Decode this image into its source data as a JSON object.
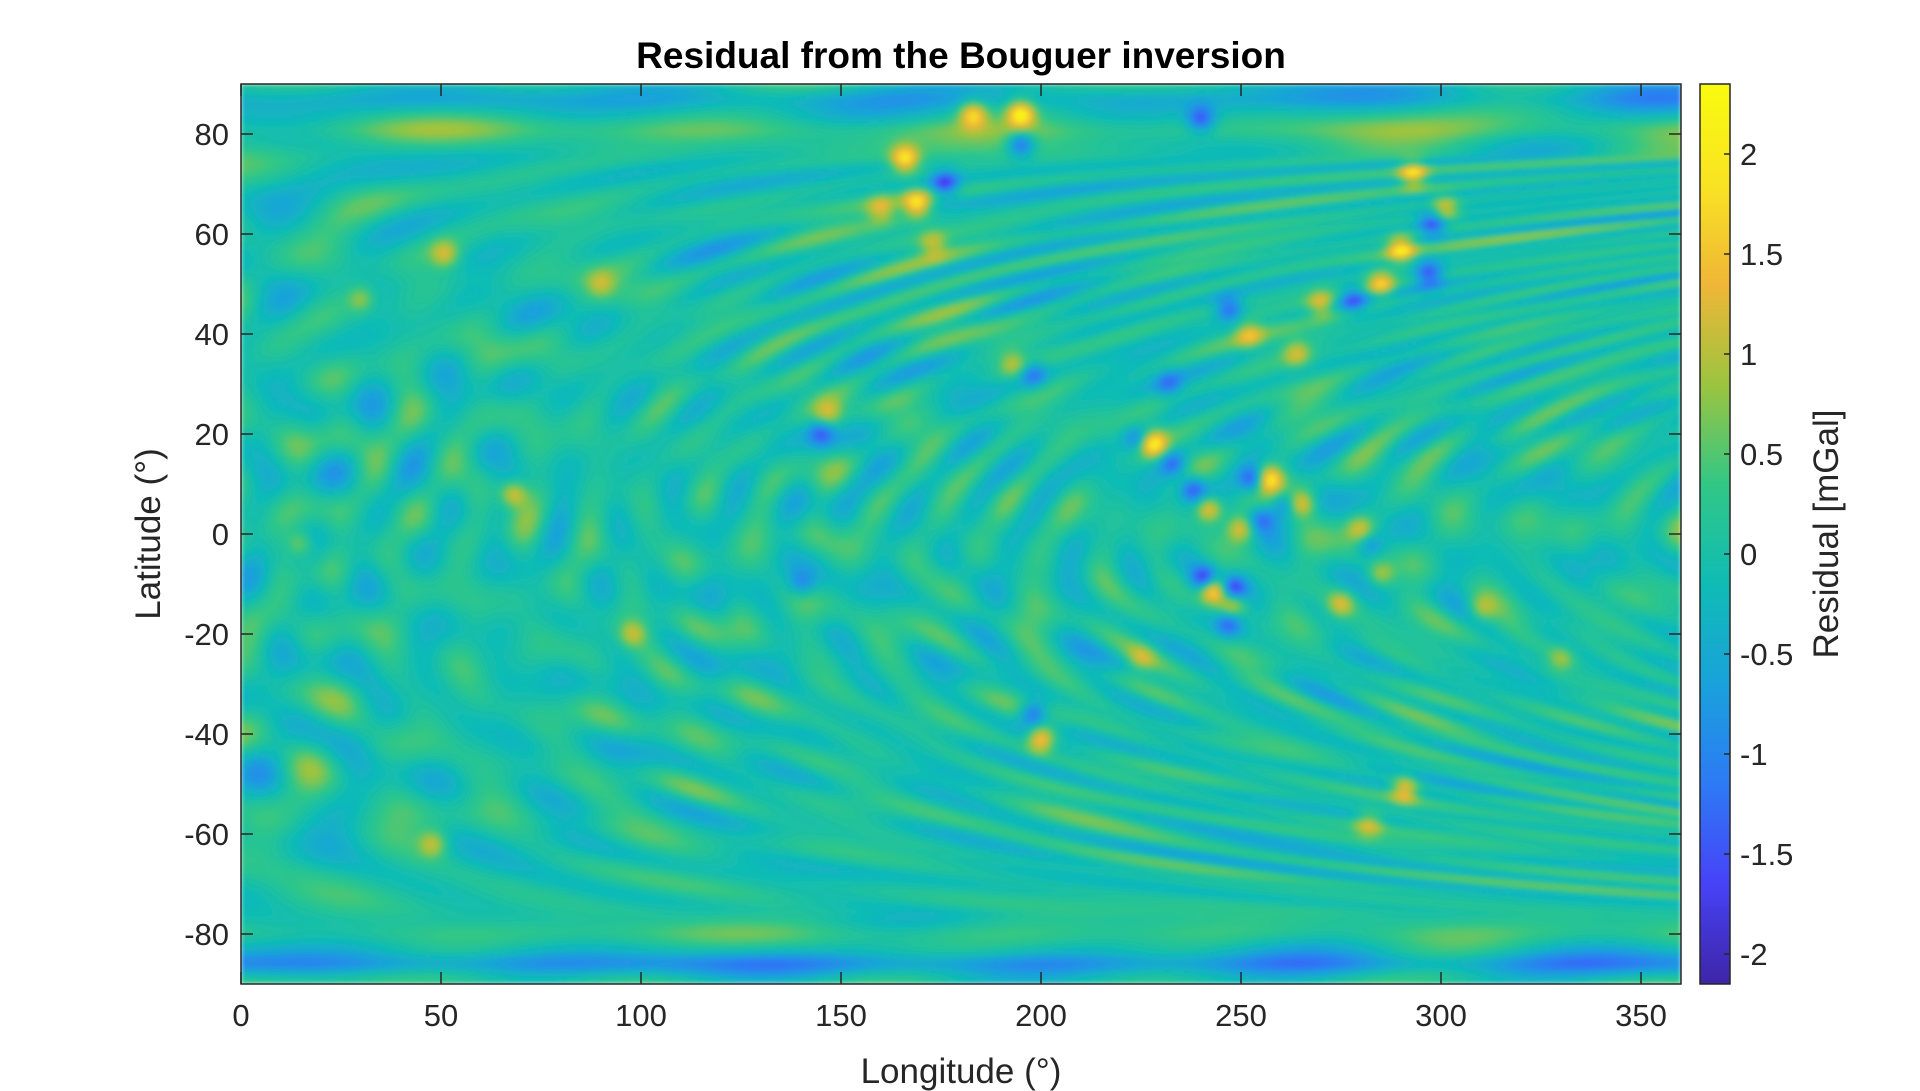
{
  "chart_data": {
    "type": "heatmap",
    "title": "Residual from the Bouguer inversion",
    "xlabel": "Longitude (°)",
    "ylabel": "Latitude (°)",
    "xlim": [
      0,
      360
    ],
    "ylim": [
      -90,
      90
    ],
    "x_ticks": [
      0,
      50,
      100,
      150,
      200,
      250,
      300,
      350
    ],
    "x_tick_labels": [
      "0",
      "50",
      "100",
      "150",
      "200",
      "250",
      "300",
      "350"
    ],
    "y_ticks": [
      80,
      60,
      40,
      20,
      0,
      -20,
      -40,
      -60,
      -80
    ],
    "y_tick_labels": [
      "80",
      "60",
      "40",
      "20",
      "0",
      "-20",
      "-40",
      "-60",
      "-80"
    ],
    "colorbar": {
      "label": "Residual [mGal]",
      "limits": [
        -2.15,
        2.35
      ],
      "ticks": [
        2,
        1.5,
        1,
        0.5,
        0,
        -0.5,
        -1,
        -1.5,
        -2
      ],
      "tick_labels": [
        "2",
        "1.5",
        "1",
        "0.5",
        "0",
        "-0.5",
        "-1",
        "-1.5",
        "-2"
      ],
      "colormap": "parula",
      "colormap_stops": [
        "#3e26a8",
        "#4743f8",
        "#2d7bf5",
        "#1aa2dc",
        "#0fbcb5",
        "#32c786",
        "#9cc43f",
        "#f0b637",
        "#f9e324",
        "#f9fb0e"
      ]
    },
    "grid": false,
    "legend": "none",
    "features": [
      {
        "lon": 228,
        "lat": 18,
        "value": 1.9
      },
      {
        "lon": 241,
        "lat": -9,
        "value": -2.1
      },
      {
        "lon": 243,
        "lat": -11,
        "value": 2.2
      },
      {
        "lon": 248,
        "lat": -11,
        "value": -1.8
      },
      {
        "lon": 257,
        "lat": 11,
        "value": 1.9
      },
      {
        "lon": 253,
        "lat": 11,
        "value": -1.6
      },
      {
        "lon": 265,
        "lat": 6,
        "value": 1.4
      },
      {
        "lon": 242,
        "lat": 5,
        "value": 1.6
      },
      {
        "lon": 238,
        "lat": 9,
        "value": -1.5
      },
      {
        "lon": 233,
        "lat": 14,
        "value": -1.2
      },
      {
        "lon": 224,
        "lat": 19,
        "value": -1.1
      },
      {
        "lon": 250,
        "lat": 1,
        "value": 1.2
      },
      {
        "lon": 255,
        "lat": 3,
        "value": -1.2
      },
      {
        "lon": 261,
        "lat": 6,
        "value": -1.0
      },
      {
        "lon": 248,
        "lat": -14,
        "value": 1.3
      },
      {
        "lon": 247,
        "lat": -18,
        "value": -1.2
      },
      {
        "lon": 275,
        "lat": -14,
        "value": 1.1
      },
      {
        "lon": 285,
        "lat": -8,
        "value": 1.0
      },
      {
        "lon": 282,
        "lat": -2,
        "value": -0.9
      },
      {
        "lon": 280,
        "lat": 1,
        "value": 1.1
      },
      {
        "lon": 195,
        "lat": 84,
        "value": 2.0
      },
      {
        "lon": 183,
        "lat": 84,
        "value": 1.6
      },
      {
        "lon": 240,
        "lat": 83,
        "value": -1.4
      },
      {
        "lon": 195,
        "lat": 78,
        "value": -1.5
      },
      {
        "lon": 166,
        "lat": 75,
        "value": 1.8
      },
      {
        "lon": 176,
        "lat": 70,
        "value": -1.6
      },
      {
        "lon": 169,
        "lat": 66,
        "value": 1.7
      },
      {
        "lon": 293,
        "lat": 72,
        "value": 1.6
      },
      {
        "lon": 301,
        "lat": 65,
        "value": 1.3
      },
      {
        "lon": 298,
        "lat": 62,
        "value": -1.4
      },
      {
        "lon": 290,
        "lat": 57,
        "value": 1.7
      },
      {
        "lon": 297,
        "lat": 52,
        "value": -1.5
      },
      {
        "lon": 285,
        "lat": 50,
        "value": 1.5
      },
      {
        "lon": 278,
        "lat": 47,
        "value": -1.2
      },
      {
        "lon": 270,
        "lat": 46,
        "value": 1.2
      },
      {
        "lon": 247,
        "lat": 45,
        "value": -1.3
      },
      {
        "lon": 252,
        "lat": 40,
        "value": 1.0
      },
      {
        "lon": 264,
        "lat": 36,
        "value": 1.0
      },
      {
        "lon": 160,
        "lat": 65,
        "value": 1.0
      },
      {
        "lon": 173,
        "lat": 58,
        "value": 0.9
      },
      {
        "lon": 200,
        "lat": -41,
        "value": 1.7
      },
      {
        "lon": 198,
        "lat": -36,
        "value": -1.4
      },
      {
        "lon": 291,
        "lat": -51,
        "value": 1.5
      },
      {
        "lon": 282,
        "lat": -58,
        "value": 1.0
      },
      {
        "lon": 68,
        "lat": 8,
        "value": 1.3
      },
      {
        "lon": 145,
        "lat": 20,
        "value": -1.2
      },
      {
        "lon": 147,
        "lat": 24,
        "value": 0.9
      },
      {
        "lon": 198,
        "lat": 32,
        "value": -1.1
      },
      {
        "lon": 193,
        "lat": 34,
        "value": 0.8
      },
      {
        "lon": 48,
        "lat": -62,
        "value": 1.0
      },
      {
        "lon": 51,
        "lat": 56,
        "value": 1.0
      },
      {
        "lon": 15,
        "lat": -2,
        "value": 0.9
      },
      {
        "lon": 98,
        "lat": -20,
        "value": 0.9
      },
      {
        "lon": 140,
        "lat": -10,
        "value": -0.9
      },
      {
        "lon": 310,
        "lat": -15,
        "value": 0.8
      },
      {
        "lon": 330,
        "lat": -25,
        "value": 0.8
      },
      {
        "lon": 232,
        "lat": 30,
        "value": -0.9
      },
      {
        "lon": 225,
        "lat": -25,
        "value": 0.7
      },
      {
        "lon": 30,
        "lat": 47,
        "value": 0.8
      },
      {
        "lon": 90,
        "lat": 50,
        "value": 0.7
      }
    ],
    "band_features": [
      {
        "lat": -86,
        "value": -0.8
      },
      {
        "lat": -80,
        "value": 0.3
      },
      {
        "lat": 87,
        "value": -0.35
      },
      {
        "lat": 81,
        "value": 0.3
      }
    ]
  }
}
